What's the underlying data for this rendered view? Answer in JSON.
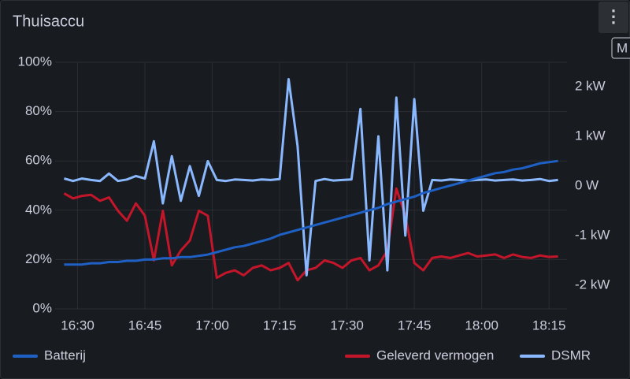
{
  "chart_data": {
    "type": "line",
    "title": "Thuisaccu",
    "menu_hint": "M",
    "legend": "bottom",
    "grid": true,
    "x": [
      "16:27",
      "16:29",
      "16:31",
      "16:33",
      "16:35",
      "16:37",
      "16:39",
      "16:41",
      "16:43",
      "16:45",
      "16:47",
      "16:49",
      "16:51",
      "16:53",
      "16:55",
      "16:57",
      "16:59",
      "17:01",
      "17:03",
      "17:05",
      "17:07",
      "17:09",
      "17:11",
      "17:13",
      "17:15",
      "17:17",
      "17:19",
      "17:21",
      "17:23",
      "17:25",
      "17:27",
      "17:29",
      "17:31",
      "17:33",
      "17:35",
      "17:37",
      "17:39",
      "17:41",
      "17:43",
      "17:45",
      "17:47",
      "17:49",
      "17:51",
      "17:53",
      "17:55",
      "17:57",
      "17:59",
      "18:01",
      "18:03",
      "18:05",
      "18:07",
      "18:09",
      "18:11",
      "18:13",
      "18:15",
      "18:17"
    ],
    "xlim": [
      "16:25",
      "18:19"
    ],
    "xticks": [
      "16:30",
      "16:45",
      "17:00",
      "17:15",
      "17:30",
      "17:45",
      "18:00",
      "18:15"
    ],
    "ylim": [
      0,
      100
    ],
    "yticks": [
      {
        "value": 0,
        "label": "0%"
      },
      {
        "value": 20,
        "label": "20%"
      },
      {
        "value": 40,
        "label": "40%"
      },
      {
        "value": 60,
        "label": "60%"
      },
      {
        "value": 80,
        "label": "80%"
      },
      {
        "value": 100,
        "label": "100%"
      }
    ],
    "y2lim": [
      -2476,
      2492
    ],
    "y2ticks": [
      {
        "value": -2000,
        "label": "-2 kW"
      },
      {
        "value": -1000,
        "label": "-1 kW"
      },
      {
        "value": 0,
        "label": "0 W"
      },
      {
        "value": 1000,
        "label": "1 kW"
      },
      {
        "value": 2000,
        "label": "2 kW"
      }
    ],
    "series": [
      {
        "name": "Batterij",
        "color": "#1f60c4",
        "values": [
          18,
          18,
          18,
          18.5,
          18.5,
          19,
          19,
          19.5,
          19.5,
          20,
          20,
          20.5,
          20.5,
          21,
          21,
          21.5,
          22,
          23,
          24,
          25,
          25.5,
          26.5,
          27.5,
          28.5,
          30,
          31,
          32,
          33,
          34,
          35,
          36,
          37,
          38,
          39,
          40,
          41,
          42.5,
          43.5,
          44.5,
          45.5,
          47,
          48,
          49,
          50,
          51,
          52,
          53,
          54,
          55,
          55.5,
          56.5,
          57,
          58,
          59,
          59.5,
          60
        ]
      },
      {
        "name": "Geleverd vermogen",
        "color": "#c4162a",
        "axis": "y2",
        "values": [
          -150,
          -250,
          -200,
          -180,
          -300,
          -230,
          -500,
          -700,
          -350,
          -600,
          -1500,
          -500,
          -1600,
          -1300,
          -1100,
          -500,
          -600,
          -1850,
          -1750,
          -1700,
          -1800,
          -1650,
          -1600,
          -1700,
          -1650,
          -1550,
          -1900,
          -1700,
          -1650,
          -1500,
          -1550,
          -1650,
          -1500,
          -1450,
          -1700,
          -1600,
          -1300,
          -50,
          -600,
          -1550,
          -1700,
          -1450,
          -1420,
          -1450,
          -1400,
          -1350,
          -1420,
          -1400,
          -1380,
          -1450,
          -1380,
          -1430,
          -1450,
          -1400,
          -1430,
          -1420
        ]
      },
      {
        "name": "DSMR",
        "color": "#8ab8ff",
        "axis": "y2",
        "values": [
          150,
          100,
          150,
          120,
          100,
          250,
          100,
          130,
          200,
          150,
          900,
          -350,
          600,
          -300,
          400,
          -200,
          500,
          120,
          100,
          130,
          120,
          110,
          130,
          120,
          140,
          2150,
          800,
          -1800,
          100,
          140,
          110,
          120,
          130,
          1550,
          -1500,
          1000,
          -1700,
          1780,
          -1000,
          1750,
          -500,
          120,
          110,
          130,
          120,
          110,
          120,
          130,
          110,
          120,
          130,
          110,
          120,
          140,
          100,
          120
        ]
      }
    ]
  }
}
